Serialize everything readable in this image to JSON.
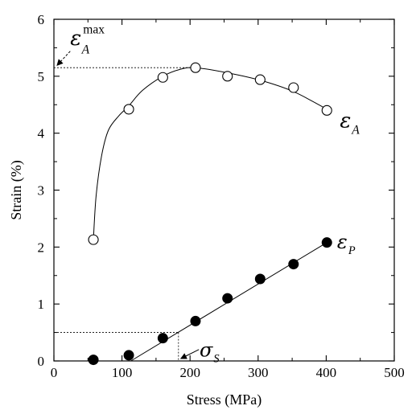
{
  "chart_data": {
    "type": "scatter",
    "xlabel": "Stress (MPa)",
    "ylabel": "Strain  (%)",
    "xlim": [
      0,
      500
    ],
    "ylim": [
      0,
      6
    ],
    "xticks": [
      0,
      100,
      200,
      300,
      400,
      500
    ],
    "yticks": [
      0,
      1,
      2,
      3,
      4,
      5,
      6
    ],
    "grid": false,
    "series": [
      {
        "name": "εA",
        "marker": "open-circle",
        "x": [
          58,
          110,
          160,
          208,
          255,
          303,
          352,
          401
        ],
        "y": [
          2.13,
          4.42,
          4.98,
          5.15,
          5.0,
          4.94,
          4.8,
          4.4
        ],
        "fit_curve": {
          "x": [
            58,
            62,
            70,
            80,
            95,
            110,
            130,
            160,
            185,
            208,
            255,
            303,
            352,
            401
          ],
          "y": [
            2.13,
            2.9,
            3.6,
            4.05,
            4.3,
            4.48,
            4.75,
            5.0,
            5.12,
            5.15,
            5.06,
            4.93,
            4.73,
            4.42
          ]
        }
      },
      {
        "name": "εP",
        "marker": "filled-circle",
        "x": [
          58,
          110,
          160,
          208,
          255,
          303,
          352,
          401
        ],
        "y": [
          0.02,
          0.1,
          0.4,
          0.7,
          1.1,
          1.44,
          1.7,
          2.08
        ],
        "fit_line": {
          "x": [
            113,
            401
          ],
          "y": [
            0,
            2.08
          ]
        }
      }
    ],
    "annotations": [
      {
        "id": "eps_a_max",
        "symbol": "ε",
        "subscript": "A",
        "superscript": "max",
        "value_y": 5.15,
        "value_x": 208
      },
      {
        "id": "sigma_s",
        "symbol": "σ",
        "subscript": "S",
        "value_x": 183,
        "value_y": 0.5
      }
    ],
    "series_labels": [
      {
        "symbol": "ε",
        "subscript": "A"
      },
      {
        "symbol": "ε",
        "subscript": "P"
      }
    ]
  }
}
